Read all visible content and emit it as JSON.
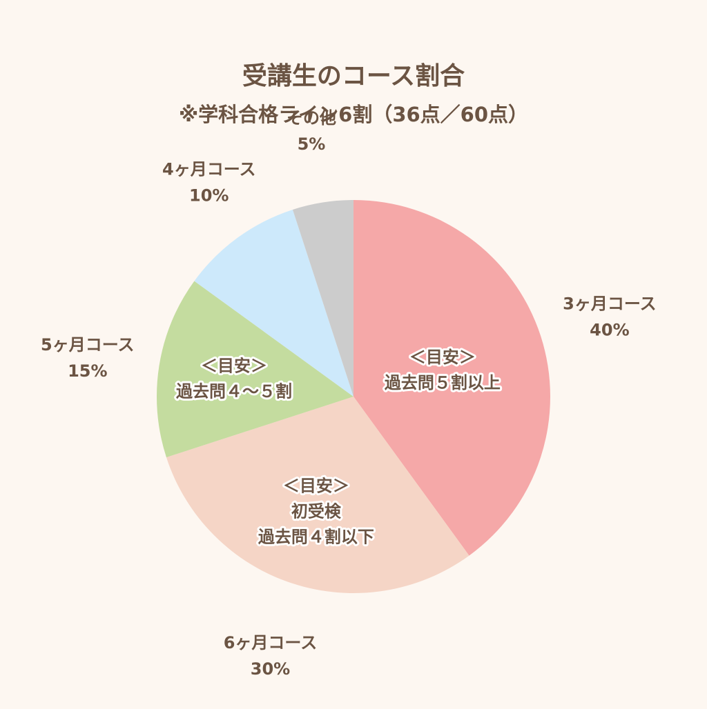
{
  "chart_data": {
    "type": "pie",
    "title": "受講生のコース割合",
    "subtitle": "※学科合格ライン6割（36点／60点）",
    "start": "12 o'clock, clockwise",
    "slices": [
      {
        "label": "3ヶ月コース",
        "value": 40,
        "value_text": "40%",
        "color": "#f5a8a8",
        "annotation": [
          "＜目安＞",
          "過去問５割以上"
        ]
      },
      {
        "label": "6ヶ月コース",
        "value": 30,
        "value_text": "30%",
        "color": "#f5d5c6",
        "annotation": [
          "＜目安＞",
          "初受検",
          "過去問４割以下"
        ]
      },
      {
        "label": "5ヶ月コース",
        "value": 15,
        "value_text": "15%",
        "color": "#c4dc9f",
        "annotation": [
          "＜目安＞",
          "過去問４～５割"
        ]
      },
      {
        "label": "4ヶ月コース",
        "value": 10,
        "value_text": "10%",
        "color": "#cde9fb",
        "annotation": []
      },
      {
        "label": "その他",
        "value": 5,
        "value_text": "5%",
        "color": "#cccccc",
        "annotation": []
      }
    ]
  }
}
